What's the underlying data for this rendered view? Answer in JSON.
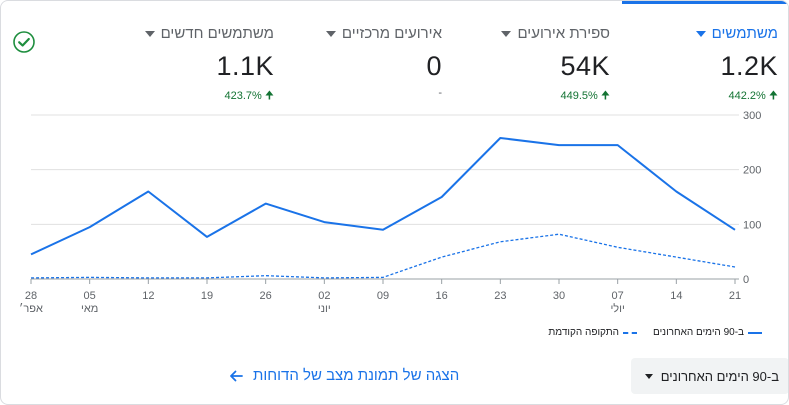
{
  "metrics": [
    {
      "title": "משתמשים",
      "value": "1.2K",
      "delta": "442.2%",
      "delta_dir": "up",
      "selected": true
    },
    {
      "title": "ספירת אירועים",
      "value": "54K",
      "delta": "449.5%",
      "delta_dir": "up",
      "selected": false
    },
    {
      "title": "אירועים מרכזיים",
      "value": "0",
      "delta": "-",
      "delta_dir": "none",
      "selected": false
    },
    {
      "title": "משתמשים חדשים",
      "value": "1.1K",
      "delta": "423.7%",
      "delta_dir": "up",
      "selected": false
    }
  ],
  "chart_data": {
    "type": "line",
    "x_ticks": [
      {
        "day": "21",
        "month": ""
      },
      {
        "day": "14",
        "month": ""
      },
      {
        "day": "07",
        "month": "יולי"
      },
      {
        "day": "30",
        "month": ""
      },
      {
        "day": "23",
        "month": ""
      },
      {
        "day": "16",
        "month": ""
      },
      {
        "day": "09",
        "month": ""
      },
      {
        "day": "02",
        "month": "יוני"
      },
      {
        "day": "26",
        "month": ""
      },
      {
        "day": "19",
        "month": ""
      },
      {
        "day": "12",
        "month": ""
      },
      {
        "day": "05",
        "month": "מאי"
      },
      {
        "day": "28",
        "month": "אפר׳"
      }
    ],
    "y_ticks": [
      0,
      100,
      200,
      300
    ],
    "ylim": [
      0,
      300
    ],
    "series": [
      {
        "name": "ב-90 הימים האחרונים",
        "style": "solid",
        "color": "#1a73e8",
        "values": [
          90,
          160,
          245,
          245,
          258,
          150,
          90,
          104,
          138,
          77,
          160,
          95,
          45
        ]
      },
      {
        "name": "התקופה הקודמת",
        "style": "dashed",
        "color": "#1a73e8",
        "values": [
          22,
          40,
          58,
          82,
          68,
          40,
          3,
          2,
          6,
          2,
          2,
          3,
          2
        ]
      }
    ]
  },
  "legend": {
    "current": "ב-90 הימים האחרונים",
    "previous": "התקופה הקודמת"
  },
  "controls": {
    "date_range": "ב-90 הימים האחרונים",
    "snapshot_link": "הצגה של תמונת מצב של הדוחות"
  }
}
